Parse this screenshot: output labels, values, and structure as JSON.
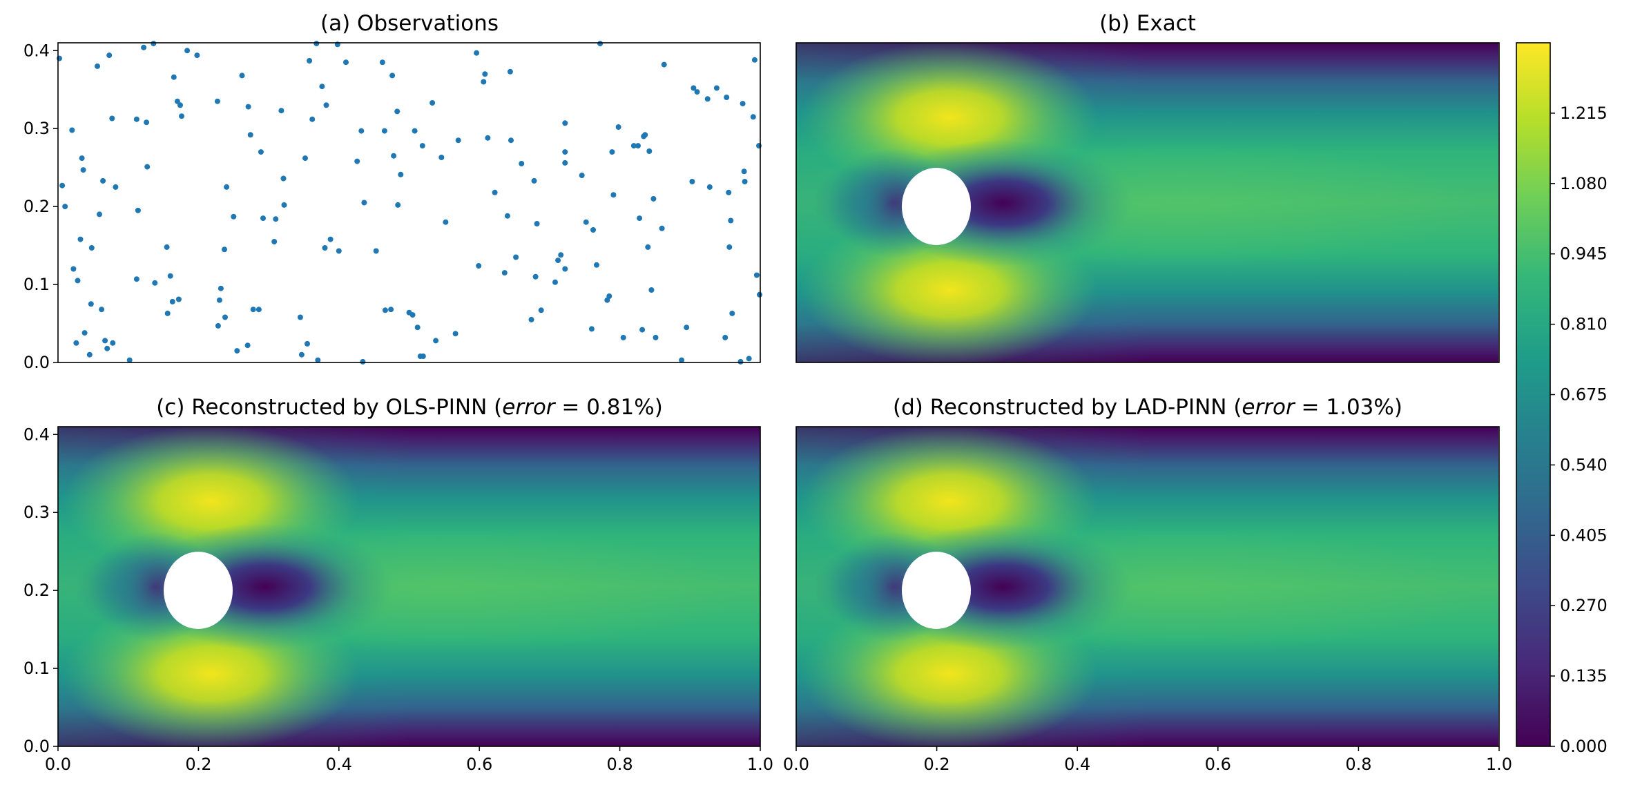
{
  "chart_data": [
    {
      "type": "scatter",
      "panel": "a",
      "title": "(a) Observations",
      "xlabel": "",
      "ylabel": "",
      "xlim": [
        0.0,
        1.0
      ],
      "ylim": [
        0.0,
        0.41
      ],
      "yticks": [
        "0.0",
        "0.1",
        "0.2",
        "0.3",
        "0.4"
      ],
      "marker_color": "#1f77b4",
      "points": [
        [
          0.002,
          0.39
        ],
        [
          0.006,
          0.227
        ],
        [
          0.01,
          0.2
        ],
        [
          0.02,
          0.298
        ],
        [
          0.022,
          0.12
        ],
        [
          0.026,
          0.025
        ],
        [
          0.028,
          0.105
        ],
        [
          0.032,
          0.158
        ],
        [
          0.034,
          0.262
        ],
        [
          0.036,
          0.247
        ],
        [
          0.038,
          0.038
        ],
        [
          0.045,
          0.01
        ],
        [
          0.047,
          0.075
        ],
        [
          0.048,
          0.147
        ],
        [
          0.056,
          0.38
        ],
        [
          0.059,
          0.19
        ],
        [
          0.062,
          0.068
        ],
        [
          0.064,
          0.233
        ],
        [
          0.067,
          0.028
        ],
        [
          0.07,
          0.018
        ],
        [
          0.073,
          0.394
        ],
        [
          0.077,
          0.313
        ],
        [
          0.078,
          0.025
        ],
        [
          0.082,
          0.225
        ],
        [
          0.102,
          0.003
        ],
        [
          0.112,
          0.312
        ],
        [
          0.112,
          0.107
        ],
        [
          0.114,
          0.195
        ],
        [
          0.122,
          0.404
        ],
        [
          0.126,
          0.308
        ],
        [
          0.127,
          0.251
        ],
        [
          0.136,
          0.409
        ],
        [
          0.138,
          0.102
        ],
        [
          0.155,
          0.148
        ],
        [
          0.156,
          0.063
        ],
        [
          0.16,
          0.111
        ],
        [
          0.163,
          0.078
        ],
        [
          0.165,
          0.366
        ],
        [
          0.17,
          0.335
        ],
        [
          0.172,
          0.081
        ],
        [
          0.174,
          0.33
        ],
        [
          0.176,
          0.316
        ],
        [
          0.184,
          0.4
        ],
        [
          0.198,
          0.394
        ],
        [
          0.227,
          0.335
        ],
        [
          0.228,
          0.047
        ],
        [
          0.23,
          0.08
        ],
        [
          0.232,
          0.095
        ],
        [
          0.237,
          0.145
        ],
        [
          0.238,
          0.058
        ],
        [
          0.24,
          0.225
        ],
        [
          0.25,
          0.187
        ],
        [
          0.255,
          0.015
        ],
        [
          0.262,
          0.368
        ],
        [
          0.27,
          0.022
        ],
        [
          0.271,
          0.328
        ],
        [
          0.274,
          0.292
        ],
        [
          0.278,
          0.068
        ],
        [
          0.286,
          0.068
        ],
        [
          0.289,
          0.27
        ],
        [
          0.292,
          0.185
        ],
        [
          0.308,
          0.155
        ],
        [
          0.31,
          0.184
        ],
        [
          0.318,
          0.323
        ],
        [
          0.321,
          0.236
        ],
        [
          0.322,
          0.202
        ],
        [
          0.345,
          0.058
        ],
        [
          0.347,
          0.01
        ],
        [
          0.352,
          0.262
        ],
        [
          0.355,
          0.024
        ],
        [
          0.358,
          0.387
        ],
        [
          0.362,
          0.312
        ],
        [
          0.368,
          0.409
        ],
        [
          0.37,
          0.003
        ],
        [
          0.376,
          0.354
        ],
        [
          0.38,
          0.147
        ],
        [
          0.382,
          0.33
        ],
        [
          0.388,
          0.158
        ],
        [
          0.398,
          0.408
        ],
        [
          0.4,
          0.143
        ],
        [
          0.41,
          0.385
        ],
        [
          0.426,
          0.258
        ],
        [
          0.432,
          0.297
        ],
        [
          0.436,
          0.205
        ],
        [
          0.434,
          0.001
        ],
        [
          0.453,
          0.143
        ],
        [
          0.462,
          0.385
        ],
        [
          0.465,
          0.297
        ],
        [
          0.466,
          0.067
        ],
        [
          0.474,
          0.068
        ],
        [
          0.476,
          0.368
        ],
        [
          0.478,
          0.265
        ],
        [
          0.483,
          0.322
        ],
        [
          0.484,
          0.202
        ],
        [
          0.488,
          0.241
        ],
        [
          0.5,
          0.064
        ],
        [
          0.505,
          0.061
        ],
        [
          0.508,
          0.297
        ],
        [
          0.512,
          0.045
        ],
        [
          0.516,
          0.008
        ],
        [
          0.519,
          0.278
        ],
        [
          0.52,
          0.008
        ],
        [
          0.533,
          0.333
        ],
        [
          0.538,
          0.028
        ],
        [
          0.546,
          0.263
        ],
        [
          0.552,
          0.18
        ],
        [
          0.566,
          0.037
        ],
        [
          0.57,
          0.285
        ],
        [
          0.596,
          0.397
        ],
        [
          0.599,
          0.124
        ],
        [
          0.606,
          0.36
        ],
        [
          0.608,
          0.37
        ],
        [
          0.612,
          0.288
        ],
        [
          0.622,
          0.218
        ],
        [
          0.636,
          0.115
        ],
        [
          0.64,
          0.188
        ],
        [
          0.644,
          0.373
        ],
        [
          0.645,
          0.285
        ],
        [
          0.652,
          0.135
        ],
        [
          0.66,
          0.255
        ],
        [
          0.674,
          0.055
        ],
        [
          0.678,
          0.233
        ],
        [
          0.68,
          0.11
        ],
        [
          0.682,
          0.178
        ],
        [
          0.688,
          0.067
        ],
        [
          0.708,
          0.103
        ],
        [
          0.712,
          0.131
        ],
        [
          0.716,
          0.138
        ],
        [
          0.722,
          0.307
        ],
        [
          0.722,
          0.27
        ],
        [
          0.722,
          0.256
        ],
        [
          0.722,
          0.12
        ],
        [
          0.746,
          0.24
        ],
        [
          0.752,
          0.18
        ],
        [
          0.76,
          0.043
        ],
        [
          0.762,
          0.17
        ],
        [
          0.767,
          0.125
        ],
        [
          0.772,
          0.409
        ],
        [
          0.782,
          0.08
        ],
        [
          0.785,
          0.085
        ],
        [
          0.789,
          0.27
        ],
        [
          0.791,
          0.215
        ],
        [
          0.798,
          0.302
        ],
        [
          0.805,
          0.032
        ],
        [
          0.82,
          0.278
        ],
        [
          0.826,
          0.278
        ],
        [
          0.828,
          0.185
        ],
        [
          0.832,
          0.042
        ],
        [
          0.834,
          0.29
        ],
        [
          0.836,
          0.292
        ],
        [
          0.84,
          0.148
        ],
        [
          0.842,
          0.271
        ],
        [
          0.845,
          0.093
        ],
        [
          0.848,
          0.21
        ],
        [
          0.851,
          0.032
        ],
        [
          0.86,
          0.172
        ],
        [
          0.863,
          0.382
        ],
        [
          0.888,
          0.003
        ],
        [
          0.895,
          0.045
        ],
        [
          0.903,
          0.232
        ],
        [
          0.905,
          0.352
        ],
        [
          0.91,
          0.347
        ],
        [
          0.925,
          0.338
        ],
        [
          0.928,
          0.225
        ],
        [
          0.938,
          0.352
        ],
        [
          0.95,
          0.032
        ],
        [
          0.952,
          0.34
        ],
        [
          0.955,
          0.218
        ],
        [
          0.956,
          0.148
        ],
        [
          0.958,
          0.182
        ],
        [
          0.96,
          0.063
        ],
        [
          0.972,
          0.001
        ],
        [
          0.975,
          0.332
        ],
        [
          0.977,
          0.245
        ],
        [
          0.978,
          0.232
        ],
        [
          0.984,
          0.005
        ],
        [
          0.99,
          0.315
        ],
        [
          0.992,
          0.388
        ],
        [
          0.995,
          0.112
        ],
        [
          0.998,
          0.278
        ],
        [
          0.999,
          0.087
        ]
      ]
    },
    {
      "type": "heatmap",
      "panel": "b",
      "title": "(b) Exact",
      "xlim": [
        0.0,
        1.0
      ],
      "ylim": [
        0.0,
        0.41
      ],
      "cylinder": {
        "center": [
          0.2,
          0.2
        ],
        "radius": 0.05
      }
    },
    {
      "type": "heatmap",
      "panel": "c",
      "title_prefix": "(c) Reconstructed by OLS-PINN (",
      "title_math": "error",
      "title_suffix": " = 0.81%)",
      "error_percent": 0.81,
      "xlim": [
        0.0,
        1.0
      ],
      "ylim": [
        0.0,
        0.41
      ],
      "xticks": [
        "0.0",
        "0.2",
        "0.4",
        "0.6",
        "0.8",
        "1.0"
      ],
      "yticks": [
        "0.0",
        "0.1",
        "0.2",
        "0.3",
        "0.4"
      ],
      "cylinder": {
        "center": [
          0.2,
          0.2
        ],
        "radius": 0.05
      }
    },
    {
      "type": "heatmap",
      "panel": "d",
      "title_prefix": "(d) Reconstructed by LAD-PINN (",
      "title_math": "error",
      "title_suffix": " = 1.03%)",
      "error_percent": 1.03,
      "xlim": [
        0.0,
        1.0
      ],
      "ylim": [
        0.0,
        0.41
      ],
      "xticks": [
        "0.0",
        "0.2",
        "0.4",
        "0.6",
        "0.8",
        "1.0"
      ],
      "cylinder": {
        "center": [
          0.2,
          0.2
        ],
        "radius": 0.05
      }
    }
  ],
  "colorbar": {
    "colormap": "viridis",
    "range": [
      0.0,
      1.35
    ],
    "ticks": [
      "0.000",
      "0.135",
      "0.270",
      "0.405",
      "0.540",
      "0.675",
      "0.810",
      "0.945",
      "1.080",
      "1.215"
    ],
    "stops": [
      "#440154",
      "#482878",
      "#3e4989",
      "#31688e",
      "#26828e",
      "#1f9e89",
      "#35b779",
      "#6ece58",
      "#b5de2b",
      "#fde725"
    ]
  }
}
